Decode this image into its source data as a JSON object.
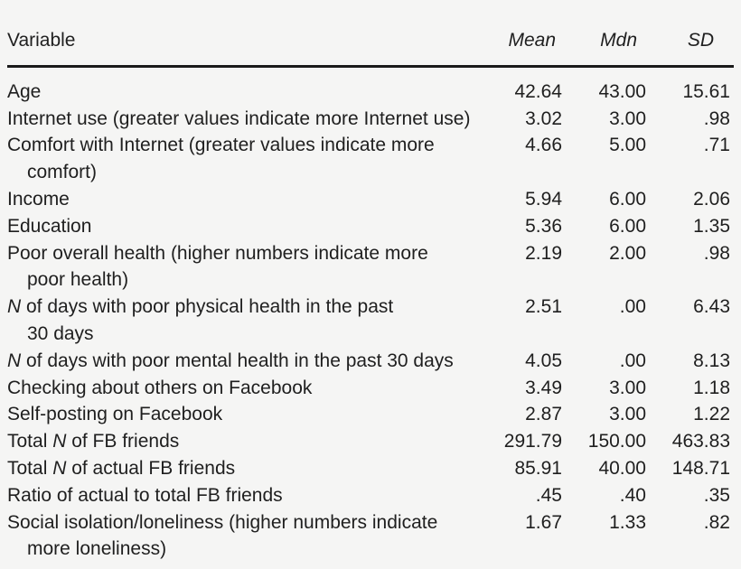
{
  "colors": {
    "background": "#f5f5f4",
    "text": "#1f1f1f",
    "rule": "#1a1a1a"
  },
  "table": {
    "columns": {
      "variable": "Variable",
      "mean": "Mean",
      "mdn": "Mdn",
      "sd": "SD"
    },
    "rows": [
      {
        "lines": [
          [
            "Age"
          ]
        ],
        "mean": "42.64",
        "mdn": "43.00",
        "sd": "15.61"
      },
      {
        "lines": [
          [
            "Internet use (greater values indicate more Internet use)"
          ]
        ],
        "mean": "3.02",
        "mdn": "3.00",
        "sd": ".98"
      },
      {
        "lines": [
          [
            "Comfort with Internet (greater values indicate more"
          ],
          [
            "comfort)"
          ]
        ],
        "mean": "4.66",
        "mdn": "5.00",
        "sd": ".71"
      },
      {
        "lines": [
          [
            "Income"
          ]
        ],
        "mean": "5.94",
        "mdn": "6.00",
        "sd": "2.06"
      },
      {
        "lines": [
          [
            "Education"
          ]
        ],
        "mean": "5.36",
        "mdn": "6.00",
        "sd": "1.35"
      },
      {
        "lines": [
          [
            "Poor overall health (higher numbers indicate more"
          ],
          [
            "poor health)"
          ]
        ],
        "mean": "2.19",
        "mdn": "2.00",
        "sd": ".98"
      },
      {
        "lines": [
          [
            {
              "it": "N"
            },
            " of days with poor physical health in the past"
          ],
          [
            "30 days"
          ]
        ],
        "mean": "2.51",
        "mdn": ".00",
        "sd": "6.43"
      },
      {
        "lines": [
          [
            {
              "it": "N"
            },
            " of days with poor mental health in the past 30 days"
          ]
        ],
        "mean": "4.05",
        "mdn": ".00",
        "sd": "8.13"
      },
      {
        "lines": [
          [
            "Checking about others on Facebook"
          ]
        ],
        "mean": "3.49",
        "mdn": "3.00",
        "sd": "1.18"
      },
      {
        "lines": [
          [
            "Self-posting on Facebook"
          ]
        ],
        "mean": "2.87",
        "mdn": "3.00",
        "sd": "1.22"
      },
      {
        "lines": [
          [
            "Total ",
            {
              "it": "N"
            },
            " of FB friends"
          ]
        ],
        "mean": "291.79",
        "mdn": "150.00",
        "sd": "463.83"
      },
      {
        "lines": [
          [
            "Total ",
            {
              "it": "N"
            },
            " of actual FB friends"
          ]
        ],
        "mean": "85.91",
        "mdn": "40.00",
        "sd": "148.71"
      },
      {
        "lines": [
          [
            "Ratio of actual to total FB friends"
          ]
        ],
        "mean": ".45",
        "mdn": ".40",
        "sd": ".35"
      },
      {
        "lines": [
          [
            "Social isolation/loneliness (higher numbers indicate"
          ],
          [
            "more loneliness)"
          ]
        ],
        "mean": "1.67",
        "mdn": "1.33",
        "sd": ".82"
      }
    ]
  }
}
